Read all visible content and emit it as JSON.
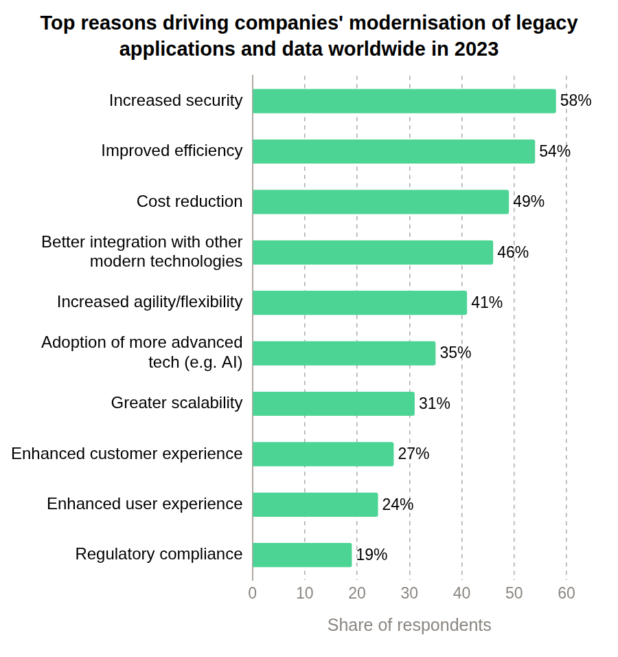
{
  "chart_data": {
    "type": "bar",
    "orientation": "horizontal",
    "title": "Top reasons driving companies' modernisation of legacy applications and data worldwide in 2023",
    "xlabel": "Share of respondents",
    "categories": [
      "Increased security",
      "Improved efficiency",
      "Cost reduction",
      "Better integration with other modern technologies",
      "Increased agility/flexibility",
      "Adoption of more advanced tech (e.g. AI)",
      "Greater scalability",
      "Enhanced customer experience",
      "Enhanced user experience",
      "Regulatory compliance"
    ],
    "values": [
      58,
      54,
      49,
      46,
      41,
      35,
      31,
      27,
      24,
      19
    ],
    "value_labels": [
      "58%",
      "54%",
      "49%",
      "46%",
      "41%",
      "35%",
      "31%",
      "27%",
      "24%",
      "19%"
    ],
    "color": "#4cd494",
    "xlim": [
      0,
      60
    ],
    "xticks": [
      0,
      10,
      20,
      30,
      40,
      50,
      60
    ],
    "grid": true,
    "data_labels": true
  }
}
